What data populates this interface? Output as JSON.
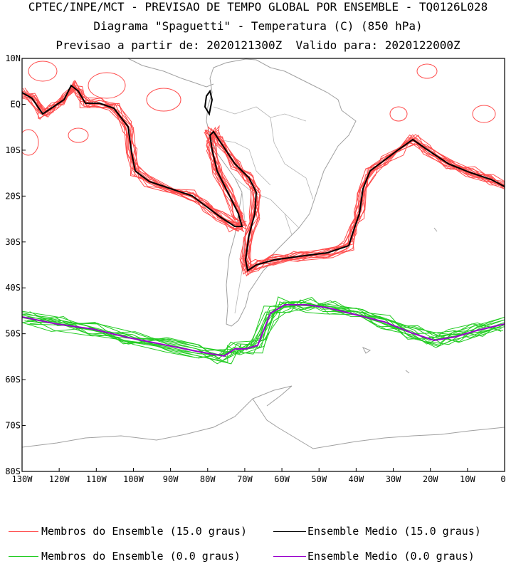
{
  "header": {
    "line1": "CPTEC/INPE/MCT - PREVISAO DE TEMPO GLOBAL POR ENSEMBLE - TQ0126L028",
    "line2": "Diagrama \"Spaguetti\" - Temperatura (C) (850 hPa)",
    "line3": "Previsao a partir de: 2020121300Z  Valido para: 2020122000Z"
  },
  "map": {
    "lat_labels": [
      "10N",
      "EQ",
      "10S",
      "20S",
      "30S",
      "40S",
      "50S",
      "60S",
      "70S",
      "80S"
    ],
    "lon_labels": [
      "130W",
      "120W",
      "110W",
      "100W",
      "90W",
      "80W",
      "70W",
      "60W",
      "50W",
      "40W",
      "30W",
      "20W",
      "10W",
      "0"
    ],
    "colors": {
      "members_15": "#ff4d4d",
      "mean_15": "#000000",
      "members_0": "#22cc22",
      "mean_0": "#9900cc",
      "coast": "#a0a0a0"
    }
  },
  "legend": {
    "members_15": "Membros do Ensemble (15.0 graus)",
    "mean_15": "Ensemble Medio (15.0 graus)",
    "members_0": "Membros do Ensemble (0.0 graus)",
    "mean_0": "Ensemble Medio (0.0 graus)"
  }
}
